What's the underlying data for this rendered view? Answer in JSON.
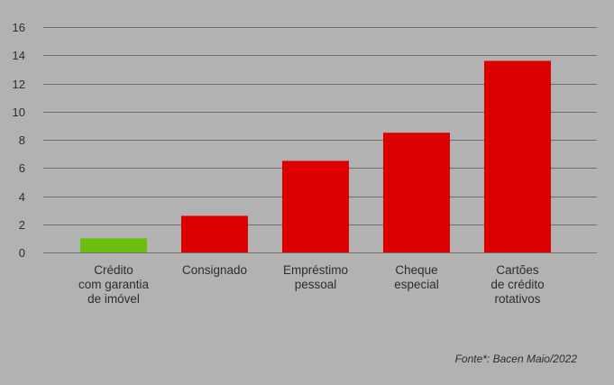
{
  "chart_data": {
    "type": "bar",
    "categories": [
      "Crédito\ncom garantia\nde imóvel",
      "Consignado",
      "Empréstimo\npessoal",
      "Cheque\nespecial",
      "Cartões\nde crédito\nrotativos"
    ],
    "values": [
      1.0,
      2.6,
      6.5,
      8.5,
      13.6
    ],
    "bar_colors": [
      "#6cbf10",
      "#dd0000",
      "#dd0000",
      "#dd0000",
      "#dd0000"
    ],
    "yticks": [
      0,
      2,
      4,
      6,
      8,
      10,
      12,
      14,
      16
    ],
    "ylim": [
      0,
      16
    ],
    "grid": true,
    "title": "",
    "xlabel": "",
    "ylabel": ""
  },
  "source_note": "Fonte*: Bacen Maio/2022",
  "colors": {
    "background": "#b2b2b2",
    "gridline": "#6f6f6f",
    "text": "#2e2e2e"
  }
}
